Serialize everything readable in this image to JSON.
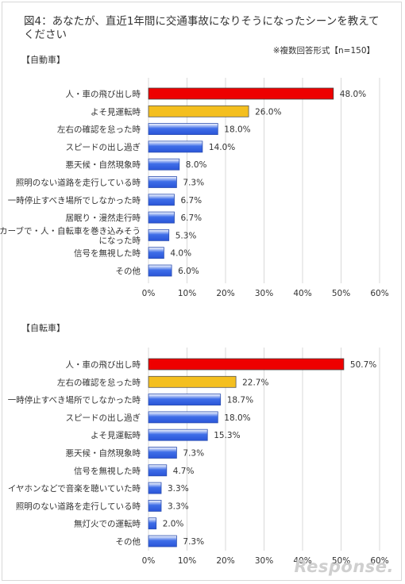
{
  "title": "図4：あなたが、直近1年間に交通事故になりそうになったシーンを教えてください",
  "note": "※複数回答形式【n=150】",
  "watermark": "Response.",
  "colors": {
    "top": "#ee0000",
    "second": "#f4bf1f",
    "other": "#3f6ee8",
    "grid": "#d9d9d9"
  },
  "chart_data": [
    {
      "type": "bar",
      "orientation": "horizontal",
      "title": "【自動車】",
      "categories": [
        "人・車の飛び出し時",
        "よそ見運転時",
        "左右の確認を怠った時",
        "スピードの出し過ぎ",
        "悪天候・自然現象時",
        "照明のない道路を走行している時",
        "一時停止すべき場所でしなかった時",
        "居眠り・漫然走行時",
        "カーブで・人・自転車を巻き込みそうになった時",
        "信号を無視した時",
        "その他"
      ],
      "values": [
        48.0,
        26.0,
        18.0,
        14.0,
        8.0,
        7.3,
        6.7,
        6.7,
        5.3,
        4.0,
        6.0
      ],
      "value_labels": [
        "48.0%",
        "26.0%",
        "18.0%",
        "14.0%",
        "8.0%",
        "7.3%",
        "6.7%",
        "6.7%",
        "5.3%",
        "4.0%",
        "6.0%"
      ],
      "xlim": [
        0,
        60
      ],
      "xticks": [
        "0%",
        "10%",
        "20%",
        "30%",
        "40%",
        "50%",
        "60%"
      ],
      "grid": true
    },
    {
      "type": "bar",
      "orientation": "horizontal",
      "title": "【自転車】",
      "categories": [
        "人・車の飛び出し時",
        "左右の確認を怠った時",
        "一時停止すべき場所でしなかった時",
        "スピードの出し過ぎ",
        "よそ見運転時",
        "悪天候・自然現象時",
        "信号を無視した時",
        "イヤホンなどで音楽を聴いていた時",
        "照明のない道路を走行している時",
        "無灯火での運転時",
        "その他"
      ],
      "values": [
        50.7,
        22.7,
        18.7,
        18.0,
        15.3,
        7.3,
        4.7,
        3.3,
        3.3,
        2.0,
        7.3
      ],
      "value_labels": [
        "50.7%",
        "22.7%",
        "18.7%",
        "18.0%",
        "15.3%",
        "7.3%",
        "4.7%",
        "3.3%",
        "3.3%",
        "2.0%",
        "7.3%"
      ],
      "xlim": [
        0,
        60
      ],
      "xticks": [
        "0%",
        "10%",
        "20%",
        "30%",
        "40%",
        "50%",
        "60%"
      ],
      "grid": true
    }
  ]
}
